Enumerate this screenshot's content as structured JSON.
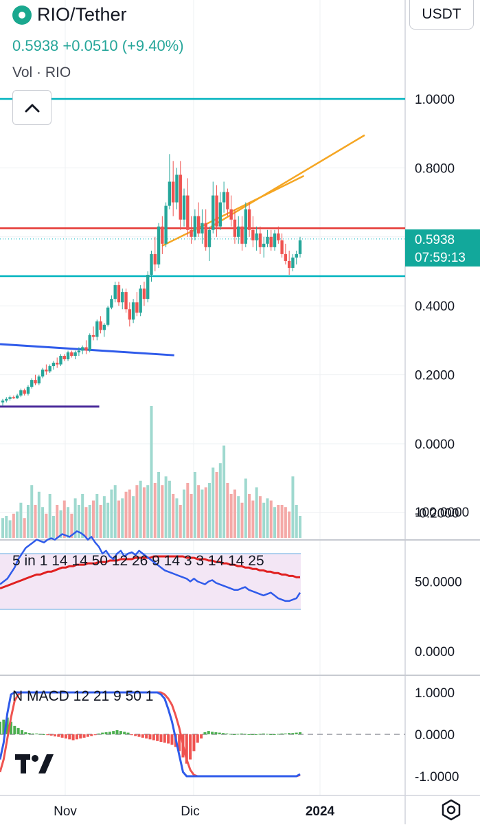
{
  "header": {
    "symbol": "RIO/Tether",
    "last_price": "0.5938",
    "change": "+0.0510",
    "change_pct": "(+9.40%)",
    "volume_label": "Vol · RIO"
  },
  "currency_button": "USDT",
  "price_tag": {
    "value": "0.5938",
    "countdown": "07:59:13"
  },
  "rsi_label": "5 in 1 14 14 50 12 26 9 14 3 3 14 14 25",
  "macd_label": "N MACD 12 21 9 50 1",
  "icons": {
    "collapse": "chevron-up-icon",
    "logo": "tradingview-logo",
    "settings": "settings-icon",
    "symbol_logo": "coin-logo-icon"
  },
  "colors": {
    "up": "#26a69a",
    "down": "#ef5350",
    "cyan_level": "#00b3bf",
    "red_level": "#e53935",
    "channel": "#f5a623",
    "blue_trend": "#2f5bea",
    "purple_line": "#4a2a9a",
    "rsi_line": "#2f5bea",
    "rsi_ma": "#e02020",
    "rsi_band": "#f3e6f5"
  },
  "chart_data": [
    {
      "type": "candlestick",
      "pair": "RIO/Tether",
      "x_ticks": [
        "Nov",
        "Dic",
        "2024"
      ],
      "y_ticks": [
        "1.0000",
        "0.8000",
        "0.4000",
        "0.2000",
        "0.0000",
        "-0.2000"
      ],
      "ylim": [
        -0.27,
        1.28
      ],
      "levels": [
        {
          "name": "cyan-resistance",
          "value": 1.0
        },
        {
          "name": "red-resistance",
          "value": 0.625
        },
        {
          "name": "cyan-support",
          "value": 0.486
        }
      ],
      "last_price": 0.5938,
      "candles_ohlc": [
        [
          0.12,
          0.13,
          0.11,
          0.125
        ],
        [
          0.125,
          0.135,
          0.12,
          0.13
        ],
        [
          0.13,
          0.14,
          0.125,
          0.135
        ],
        [
          0.135,
          0.14,
          0.13,
          0.132
        ],
        [
          0.132,
          0.145,
          0.13,
          0.14
        ],
        [
          0.14,
          0.16,
          0.135,
          0.155
        ],
        [
          0.155,
          0.16,
          0.14,
          0.145
        ],
        [
          0.145,
          0.17,
          0.14,
          0.165
        ],
        [
          0.165,
          0.19,
          0.16,
          0.185
        ],
        [
          0.185,
          0.2,
          0.17,
          0.175
        ],
        [
          0.175,
          0.2,
          0.17,
          0.195
        ],
        [
          0.195,
          0.22,
          0.19,
          0.215
        ],
        [
          0.215,
          0.23,
          0.2,
          0.21
        ],
        [
          0.21,
          0.23,
          0.205,
          0.225
        ],
        [
          0.225,
          0.24,
          0.215,
          0.235
        ],
        [
          0.235,
          0.25,
          0.22,
          0.23
        ],
        [
          0.23,
          0.26,
          0.225,
          0.255
        ],
        [
          0.255,
          0.26,
          0.24,
          0.245
        ],
        [
          0.245,
          0.27,
          0.24,
          0.265
        ],
        [
          0.265,
          0.27,
          0.25,
          0.255
        ],
        [
          0.255,
          0.27,
          0.245,
          0.265
        ],
        [
          0.265,
          0.28,
          0.255,
          0.27
        ],
        [
          0.27,
          0.285,
          0.26,
          0.28
        ],
        [
          0.28,
          0.3,
          0.26,
          0.27
        ],
        [
          0.27,
          0.32,
          0.265,
          0.315
        ],
        [
          0.315,
          0.34,
          0.3,
          0.31
        ],
        [
          0.31,
          0.36,
          0.3,
          0.355
        ],
        [
          0.355,
          0.37,
          0.32,
          0.33
        ],
        [
          0.33,
          0.35,
          0.31,
          0.345
        ],
        [
          0.345,
          0.4,
          0.34,
          0.395
        ],
        [
          0.395,
          0.43,
          0.39,
          0.42
        ],
        [
          0.42,
          0.47,
          0.41,
          0.46
        ],
        [
          0.46,
          0.47,
          0.4,
          0.41
        ],
        [
          0.41,
          0.45,
          0.39,
          0.44
        ],
        [
          0.44,
          0.45,
          0.38,
          0.39
        ],
        [
          0.39,
          0.41,
          0.34,
          0.36
        ],
        [
          0.36,
          0.42,
          0.35,
          0.41
        ],
        [
          0.41,
          0.44,
          0.37,
          0.38
        ],
        [
          0.38,
          0.46,
          0.37,
          0.45
        ],
        [
          0.45,
          0.47,
          0.4,
          0.42
        ],
        [
          0.42,
          0.5,
          0.41,
          0.49
        ],
        [
          0.49,
          0.56,
          0.47,
          0.55
        ],
        [
          0.55,
          0.6,
          0.5,
          0.52
        ],
        [
          0.52,
          0.64,
          0.51,
          0.63
        ],
        [
          0.63,
          0.66,
          0.55,
          0.58
        ],
        [
          0.58,
          0.7,
          0.57,
          0.69
        ],
        [
          0.69,
          0.84,
          0.68,
          0.76
        ],
        [
          0.76,
          0.82,
          0.66,
          0.7
        ],
        [
          0.7,
          0.8,
          0.68,
          0.78
        ],
        [
          0.78,
          0.82,
          0.62,
          0.65
        ],
        [
          0.65,
          0.74,
          0.63,
          0.72
        ],
        [
          0.72,
          0.77,
          0.6,
          0.62
        ],
        [
          0.62,
          0.66,
          0.58,
          0.6
        ],
        [
          0.6,
          0.68,
          0.59,
          0.66
        ],
        [
          0.66,
          0.7,
          0.6,
          0.61
        ],
        [
          0.61,
          0.68,
          0.58,
          0.64
        ],
        [
          0.64,
          0.68,
          0.56,
          0.57
        ],
        [
          0.57,
          0.63,
          0.53,
          0.62
        ],
        [
          0.62,
          0.76,
          0.61,
          0.72
        ],
        [
          0.72,
          0.75,
          0.6,
          0.63
        ],
        [
          0.63,
          0.73,
          0.62,
          0.7
        ],
        [
          0.7,
          0.76,
          0.67,
          0.73
        ],
        [
          0.73,
          0.74,
          0.66,
          0.68
        ],
        [
          0.68,
          0.72,
          0.63,
          0.65
        ],
        [
          0.65,
          0.68,
          0.58,
          0.6
        ],
        [
          0.6,
          0.66,
          0.58,
          0.63
        ],
        [
          0.63,
          0.66,
          0.56,
          0.58
        ],
        [
          0.58,
          0.7,
          0.57,
          0.68
        ],
        [
          0.68,
          0.7,
          0.6,
          0.62
        ],
        [
          0.62,
          0.66,
          0.57,
          0.59
        ],
        [
          0.59,
          0.63,
          0.56,
          0.61
        ],
        [
          0.61,
          0.63,
          0.55,
          0.57
        ],
        [
          0.57,
          0.6,
          0.54,
          0.58
        ],
        [
          0.58,
          0.62,
          0.57,
          0.6
        ],
        [
          0.6,
          0.62,
          0.56,
          0.57
        ],
        [
          0.57,
          0.62,
          0.56,
          0.61
        ],
        [
          0.61,
          0.63,
          0.58,
          0.59
        ],
        [
          0.59,
          0.61,
          0.54,
          0.55
        ],
        [
          0.55,
          0.58,
          0.52,
          0.53
        ],
        [
          0.53,
          0.56,
          0.49,
          0.51
        ],
        [
          0.51,
          0.55,
          0.5,
          0.54
        ],
        [
          0.54,
          0.56,
          0.52,
          0.55
        ],
        [
          0.55,
          0.6,
          0.54,
          0.59
        ]
      ],
      "volume": [
        18,
        20,
        16,
        22,
        24,
        32,
        18,
        30,
        48,
        30,
        42,
        28,
        22,
        40,
        20,
        30,
        25,
        34,
        28,
        22,
        36,
        30,
        40,
        28,
        30,
        34,
        40,
        30,
        38,
        32,
        44,
        48,
        34,
        36,
        42,
        44,
        38,
        48,
        52,
        46,
        48,
        120,
        50,
        60,
        48,
        56,
        52,
        40,
        36,
        30,
        44,
        50,
        40,
        60,
        48,
        44,
        46,
        50,
        64,
        60,
        68,
        84,
        50,
        40,
        44,
        38,
        32,
        54,
        40,
        34,
        46,
        38,
        32,
        36,
        34,
        28,
        30,
        30,
        28,
        24,
        56,
        30,
        20
      ],
      "channel_upper": [
        [
          0.8949,
          0.9
        ],
        [
          0.6286,
          0.52
        ]
      ],
      "channel_lower": [
        [
          0.7769,
          0.75
        ],
        [
          0.5739,
          0.4
        ]
      ],
      "blue_trend": [
        [
          0.2889,
          0
        ],
        [
          0.2566,
          0.43
        ]
      ],
      "purple_line": [
        [
          0.1077,
          0
        ],
        [
          0.1077,
          0.245
        ]
      ]
    },
    {
      "type": "line",
      "name": "RSI",
      "label": "5 in 1 14 14 50 12 26 9 14 3 3 14 14 25",
      "y_ticks": [
        "100.0000",
        "50.0000",
        "0.0000"
      ],
      "band": [
        30,
        70
      ],
      "series": [
        {
          "values": [
            48,
            50,
            52,
            56,
            60,
            66,
            70,
            74,
            76,
            78,
            80,
            79,
            78,
            80,
            81,
            80,
            82,
            84,
            83,
            82,
            84,
            86,
            85,
            83,
            80,
            82,
            78,
            75,
            70,
            72,
            68,
            66,
            70,
            72,
            68,
            70,
            71,
            69,
            72,
            70,
            68,
            66,
            64,
            62,
            60,
            58,
            57,
            56,
            55,
            54,
            53,
            52,
            50,
            52,
            50,
            49,
            48,
            50,
            51,
            49,
            48,
            47,
            46,
            45,
            44,
            44,
            45,
            46,
            44,
            43,
            42,
            41,
            40,
            41,
            42,
            40,
            38,
            37,
            36,
            36,
            37,
            38,
            42
          ]
        },
        {
          "values": [
            45,
            46,
            47,
            48,
            49,
            50,
            51,
            52,
            53,
            54,
            55,
            55,
            56,
            57,
            57,
            58,
            59,
            60,
            60,
            61,
            61,
            62,
            62,
            62,
            63,
            63,
            63,
            64,
            64,
            64,
            65,
            65,
            65,
            66,
            66,
            66,
            66,
            67,
            67,
            67,
            67,
            67,
            68,
            68,
            68,
            68,
            68,
            68,
            68,
            68,
            68,
            67,
            67,
            67,
            66,
            66,
            66,
            65,
            65,
            64,
            64,
            63,
            63,
            62,
            62,
            61,
            61,
            60,
            60,
            59,
            59,
            58,
            58,
            57,
            57,
            56,
            56,
            55,
            55,
            54,
            54,
            53,
            53
          ]
        }
      ]
    },
    {
      "type": "bar",
      "name": "MACD",
      "label": "N MACD 12 21 9 50 1",
      "y_ticks": [
        "1.0000",
        "0.0000",
        "-1.0000"
      ],
      "histogram": [
        0.3,
        0.35,
        0.4,
        0.3,
        0.2,
        0.15,
        0.1,
        0.05,
        0.03,
        0.02,
        0.02,
        0.01,
        0.0,
        -0.02,
        -0.03,
        -0.05,
        -0.06,
        -0.08,
        -0.1,
        -0.12,
        -0.14,
        -0.12,
        -0.1,
        -0.08,
        -0.06,
        -0.04,
        -0.02,
        0.02,
        0.04,
        0.05,
        0.06,
        0.08,
        0.1,
        0.08,
        0.06,
        0.04,
        -0.02,
        -0.04,
        -0.06,
        -0.08,
        -0.1,
        -0.12,
        -0.14,
        -0.16,
        -0.18,
        -0.2,
        -0.22,
        -0.25,
        -0.3,
        -0.4,
        -0.55,
        -0.7,
        -0.6,
        -0.4,
        -0.2,
        -0.1,
        0.05,
        0.08,
        0.06,
        0.05,
        0.04,
        0.03,
        0.02,
        0.01,
        0.0,
        0.01,
        0.02,
        0.01,
        0.0,
        0.0,
        0.0,
        0.01,
        0.02,
        0.01,
        0.0,
        0.0,
        0.01,
        0.02,
        0.02,
        0.03,
        0.03,
        0.04,
        0.05
      ],
      "series": [
        {
          "values": [
            -0.6,
            -0.2,
            0.5,
            0.95,
            1.0,
            1.0,
            1.0,
            1.0,
            1.0,
            1.0,
            1.0,
            1.0,
            1.0,
            1.0,
            1.0,
            1.0,
            1.0,
            1.0,
            1.0,
            1.0,
            1.0,
            1.0,
            1.0,
            1.0,
            1.0,
            1.0,
            1.0,
            1.0,
            1.0,
            1.0,
            1.0,
            1.0,
            1.0,
            1.0,
            1.0,
            1.0,
            1.0,
            1.0,
            1.0,
            1.0,
            1.0,
            1.0,
            1.0,
            1.0,
            0.95,
            0.85,
            0.6,
            0.3,
            -0.1,
            -0.5,
            -0.9,
            -1.0,
            -1.0,
            -1.0,
            -1.0,
            -1.0,
            -1.0,
            -1.0,
            -1.0,
            -1.0,
            -1.0,
            -1.0,
            -1.0,
            -1.0,
            -1.0,
            -1.0,
            -1.0,
            -1.0,
            -1.0,
            -1.0,
            -1.0,
            -1.0,
            -1.0,
            -1.0,
            -1.0,
            -1.0,
            -1.0,
            -1.0,
            -1.0,
            -1.0,
            -1.0,
            -1.0,
            -0.95
          ]
        },
        {
          "values": [
            -0.9,
            -0.6,
            -0.1,
            0.4,
            0.8,
            0.95,
            1.0,
            1.0,
            1.0,
            1.0,
            1.0,
            1.0,
            1.0,
            1.0,
            1.0,
            1.0,
            1.0,
            1.0,
            1.0,
            1.0,
            1.0,
            1.0,
            1.0,
            1.0,
            1.0,
            1.0,
            1.0,
            1.0,
            1.0,
            1.0,
            1.0,
            1.0,
            1.0,
            1.0,
            1.0,
            1.0,
            1.0,
            1.0,
            1.0,
            1.0,
            1.0,
            1.0,
            1.0,
            1.0,
            1.0,
            0.95,
            0.85,
            0.7,
            0.45,
            0.15,
            -0.25,
            -0.6,
            -0.85,
            -0.97,
            -1.0,
            -1.0,
            -1.0,
            -1.0,
            -1.0,
            -1.0,
            -1.0,
            -1.0,
            -1.0,
            -1.0,
            -1.0,
            -1.0,
            -1.0,
            -1.0,
            -1.0,
            -1.0,
            -1.0,
            -1.0,
            -1.0,
            -1.0,
            -1.0,
            -1.0,
            -1.0,
            -1.0,
            -1.0,
            -1.0,
            -1.0,
            -1.0,
            -0.97
          ]
        }
      ]
    }
  ]
}
